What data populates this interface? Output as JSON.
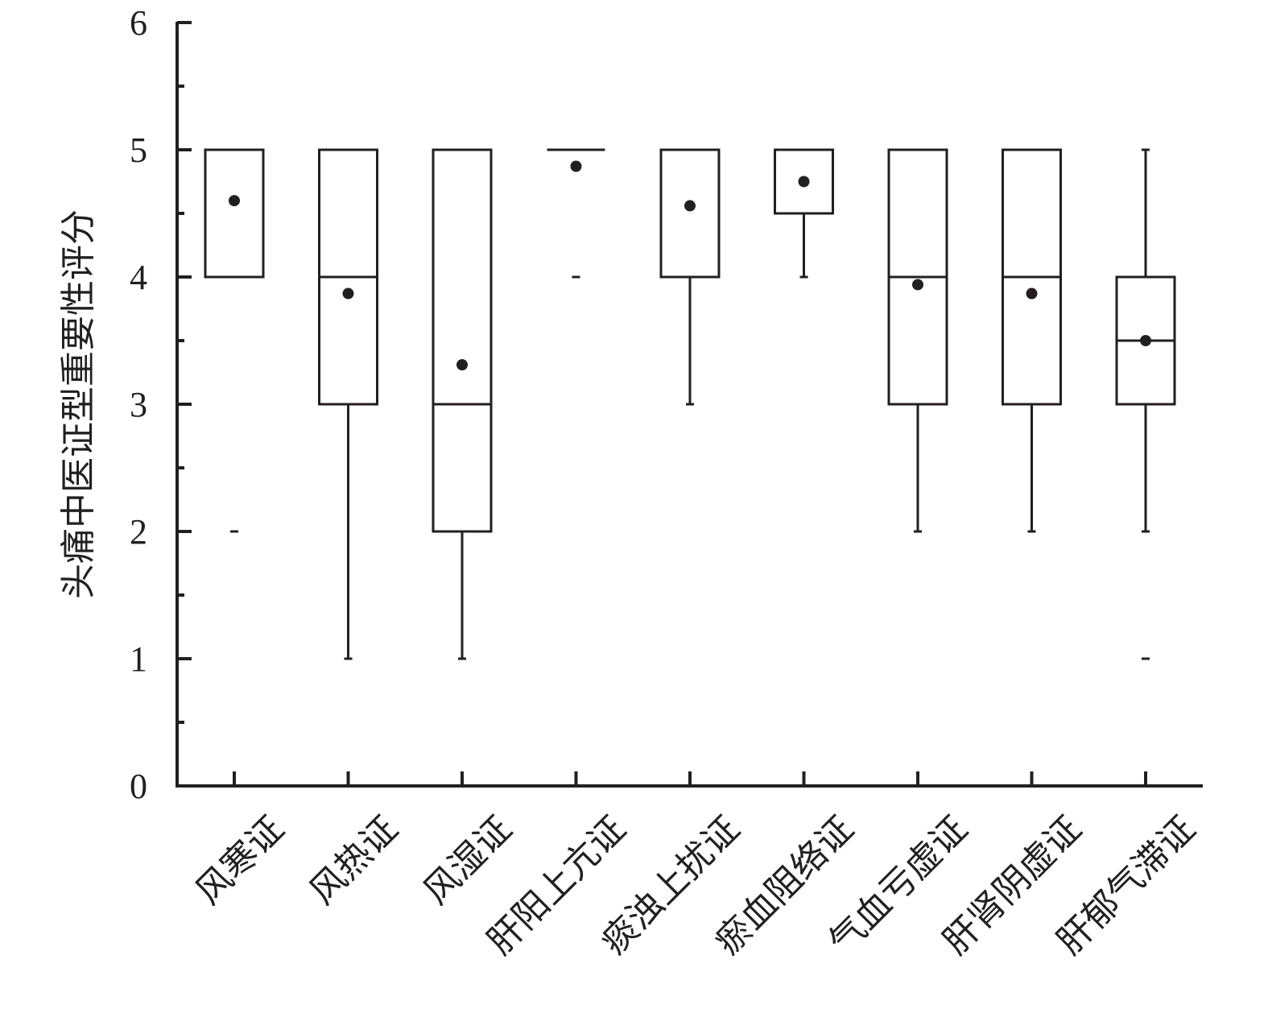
{
  "chart_data": {
    "type": "box",
    "title": "",
    "xlabel": "",
    "ylabel": "头痛中医证型重要性评分",
    "ylim": [
      0,
      6
    ],
    "y_ticks": [
      "0",
      "1",
      "2",
      "3",
      "4",
      "5",
      "6"
    ],
    "y_minor_ticks": [
      0.5,
      1.5,
      2.5,
      3.5,
      4.5,
      5.5
    ],
    "categories": [
      "风寒证",
      "风热证",
      "风湿证",
      "肝阳上亢证",
      "痰浊上扰证",
      "瘀血阻络证",
      "气血亏虚证",
      "肝肾阴虚证",
      "肝郁气滞证"
    ],
    "boxes": [
      {
        "category": "风寒证",
        "whisker_low": 4,
        "q1": 4,
        "median": 5,
        "q3": 5,
        "whisker_high": 5,
        "mean": 4.6,
        "outliers": [
          2
        ]
      },
      {
        "category": "风热证",
        "whisker_low": 1,
        "q1": 3,
        "median": 4,
        "q3": 5,
        "whisker_high": 5,
        "mean": 3.87,
        "outliers": []
      },
      {
        "category": "风湿证",
        "whisker_low": 1,
        "q1": 2,
        "median": 3,
        "q3": 5,
        "whisker_high": 5,
        "mean": 3.31,
        "outliers": []
      },
      {
        "category": "肝阳上亢证",
        "whisker_low": 5,
        "q1": 5,
        "median": 5,
        "q3": 5,
        "whisker_high": 5,
        "mean": 4.87,
        "outliers": [
          4
        ]
      },
      {
        "category": "痰浊上扰证",
        "whisker_low": 3,
        "q1": 4,
        "median": 5,
        "q3": 5,
        "whisker_high": 5,
        "mean": 4.56,
        "outliers": []
      },
      {
        "category": "瘀血阻络证",
        "whisker_low": 4,
        "q1": 4.5,
        "median": 5,
        "q3": 5,
        "whisker_high": 5,
        "mean": 4.75,
        "outliers": []
      },
      {
        "category": "气血亏虚证",
        "whisker_low": 2,
        "q1": 3,
        "median": 4,
        "q3": 5,
        "whisker_high": 5,
        "mean": 3.94,
        "outliers": []
      },
      {
        "category": "肝肾阴虚证",
        "whisker_low": 2,
        "q1": 3,
        "median": 4,
        "q3": 5,
        "whisker_high": 5,
        "mean": 3.87,
        "outliers": []
      },
      {
        "category": "肝郁气滞证",
        "whisker_low": 2,
        "q1": 3,
        "median": 3.5,
        "q3": 4,
        "whisker_high": 5,
        "mean": 3.5,
        "outliers": [
          1
        ]
      }
    ],
    "grid": false,
    "legend": "none",
    "colors": {
      "line": "#231f20",
      "box_fill": "#ffffff",
      "mean_marker": "#231f20",
      "background": "#ffffff"
    }
  }
}
